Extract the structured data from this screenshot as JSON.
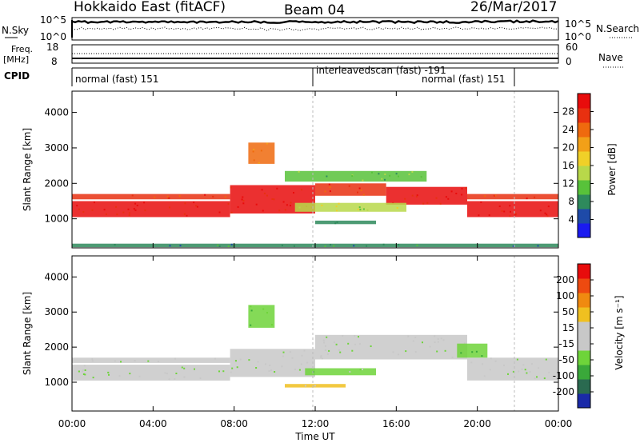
{
  "header": {
    "title": "Hokkaido East (fitACF)",
    "beam": "Beam 04",
    "date": "26/Mar/2017"
  },
  "noise_panel": {
    "left_label": "N.Sky",
    "left_ticks": [
      "10^5",
      "10^0"
    ],
    "right_ticks": [
      "10^5",
      "10^0"
    ],
    "right_label": "N.Search"
  },
  "freq_panel": {
    "left_label_1": "Freq.",
    "left_label_2": "[MHz]",
    "left_ticks": [
      "18",
      "8"
    ],
    "right_ticks": [
      "60",
      "0"
    ],
    "right_label": "Nave"
  },
  "cpid_panel": {
    "label": "CPID",
    "modes": [
      "normal (fast) 151",
      "interleavedscan (fast) -191",
      "normal (fast) 151"
    ]
  },
  "chart_data": [
    {
      "type": "heatmap",
      "name": "Power",
      "ylabel": "Slant Range [km]",
      "x_range_hours": [
        0,
        24
      ],
      "ylim": [
        180,
        4600
      ],
      "yticks": [
        1000,
        2000,
        3000,
        4000
      ],
      "colorbar": {
        "label": "Power [dB]",
        "ticks": [
          "4",
          "8",
          "12",
          "16",
          "20",
          "24",
          "28"
        ],
        "colors": [
          "#1a1af0",
          "#1e4aa8",
          "#2e8a5c",
          "#58c23a",
          "#b8d84a",
          "#f0d028",
          "#f2a018",
          "#ef6a0e",
          "#e83010",
          "#e80c0c"
        ]
      },
      "regions": [
        {
          "t": [
            0.0,
            7.8
          ],
          "range": [
            1050,
            1500
          ],
          "level": 9
        },
        {
          "t": [
            0.0,
            7.8
          ],
          "range": [
            1550,
            1700
          ],
          "level": 8
        },
        {
          "t": [
            7.8,
            12.0
          ],
          "range": [
            1150,
            1950
          ],
          "level": 9
        },
        {
          "t": [
            12.0,
            15.5
          ],
          "range": [
            1650,
            2000
          ],
          "level": 8
        },
        {
          "t": [
            15.5,
            19.5
          ],
          "range": [
            1400,
            1900
          ],
          "level": 9
        },
        {
          "t": [
            19.5,
            24.0
          ],
          "range": [
            1050,
            1500
          ],
          "level": 9
        },
        {
          "t": [
            19.5,
            24.0
          ],
          "range": [
            1550,
            1700
          ],
          "level": 8
        },
        {
          "t": [
            10.5,
            17.5
          ],
          "range": [
            2050,
            2350
          ],
          "level": 3
        },
        {
          "t": [
            11.0,
            16.5
          ],
          "range": [
            1200,
            1450
          ],
          "level": 4
        },
        {
          "t": [
            12.0,
            15.0
          ],
          "range": [
            850,
            950
          ],
          "level": 2
        },
        {
          "t": [
            8.7,
            10.0
          ],
          "range": [
            2550,
            3150
          ],
          "level": 7
        },
        {
          "t": [
            0.0,
            24.0
          ],
          "range": [
            200,
            300
          ],
          "level": 2
        }
      ]
    },
    {
      "type": "heatmap",
      "name": "Velocity",
      "ylabel": "Slant Range [km]",
      "xlabel": "Time UT",
      "x_range_hours": [
        0,
        24
      ],
      "xticks": [
        "00:00",
        "04:00",
        "08:00",
        "12:00",
        "16:00",
        "20:00",
        "00:00"
      ],
      "ylim": [
        180,
        4600
      ],
      "yticks": [
        1000,
        2000,
        3000,
        4000
      ],
      "colorbar": {
        "label": "Velocity [m s⁻¹]",
        "ticks": [
          "200",
          "100",
          "50",
          "15",
          "-15",
          "-50",
          "-100",
          "-200"
        ],
        "colors": [
          "#1a2aa8",
          "#2a6a50",
          "#3aa83a",
          "#6ed43a",
          "#c8c8c8",
          "#c8c8c8",
          "#f0c020",
          "#f08a10",
          "#ee4a10",
          "#e80c0c"
        ]
      },
      "regions": [
        {
          "t": [
            0.0,
            7.8
          ],
          "range": [
            1050,
            1500
          ],
          "level": 4
        },
        {
          "t": [
            0.0,
            7.8
          ],
          "range": [
            1550,
            1700
          ],
          "level": 4
        },
        {
          "t": [
            7.8,
            12.0
          ],
          "range": [
            1150,
            1950
          ],
          "level": 4
        },
        {
          "t": [
            12.0,
            19.5
          ],
          "range": [
            1650,
            2350
          ],
          "level": 4
        },
        {
          "t": [
            19.5,
            24.0
          ],
          "range": [
            1050,
            1700
          ],
          "level": 4
        },
        {
          "t": [
            19.0,
            20.5
          ],
          "range": [
            1700,
            2100
          ],
          "level": 3
        },
        {
          "t": [
            8.7,
            10.0
          ],
          "range": [
            2550,
            3200
          ],
          "level": 3
        },
        {
          "t": [
            11.5,
            15.0
          ],
          "range": [
            1200,
            1400
          ],
          "level": 3
        },
        {
          "t": [
            10.5,
            13.5
          ],
          "range": [
            850,
            950
          ],
          "level": 6
        }
      ]
    }
  ]
}
